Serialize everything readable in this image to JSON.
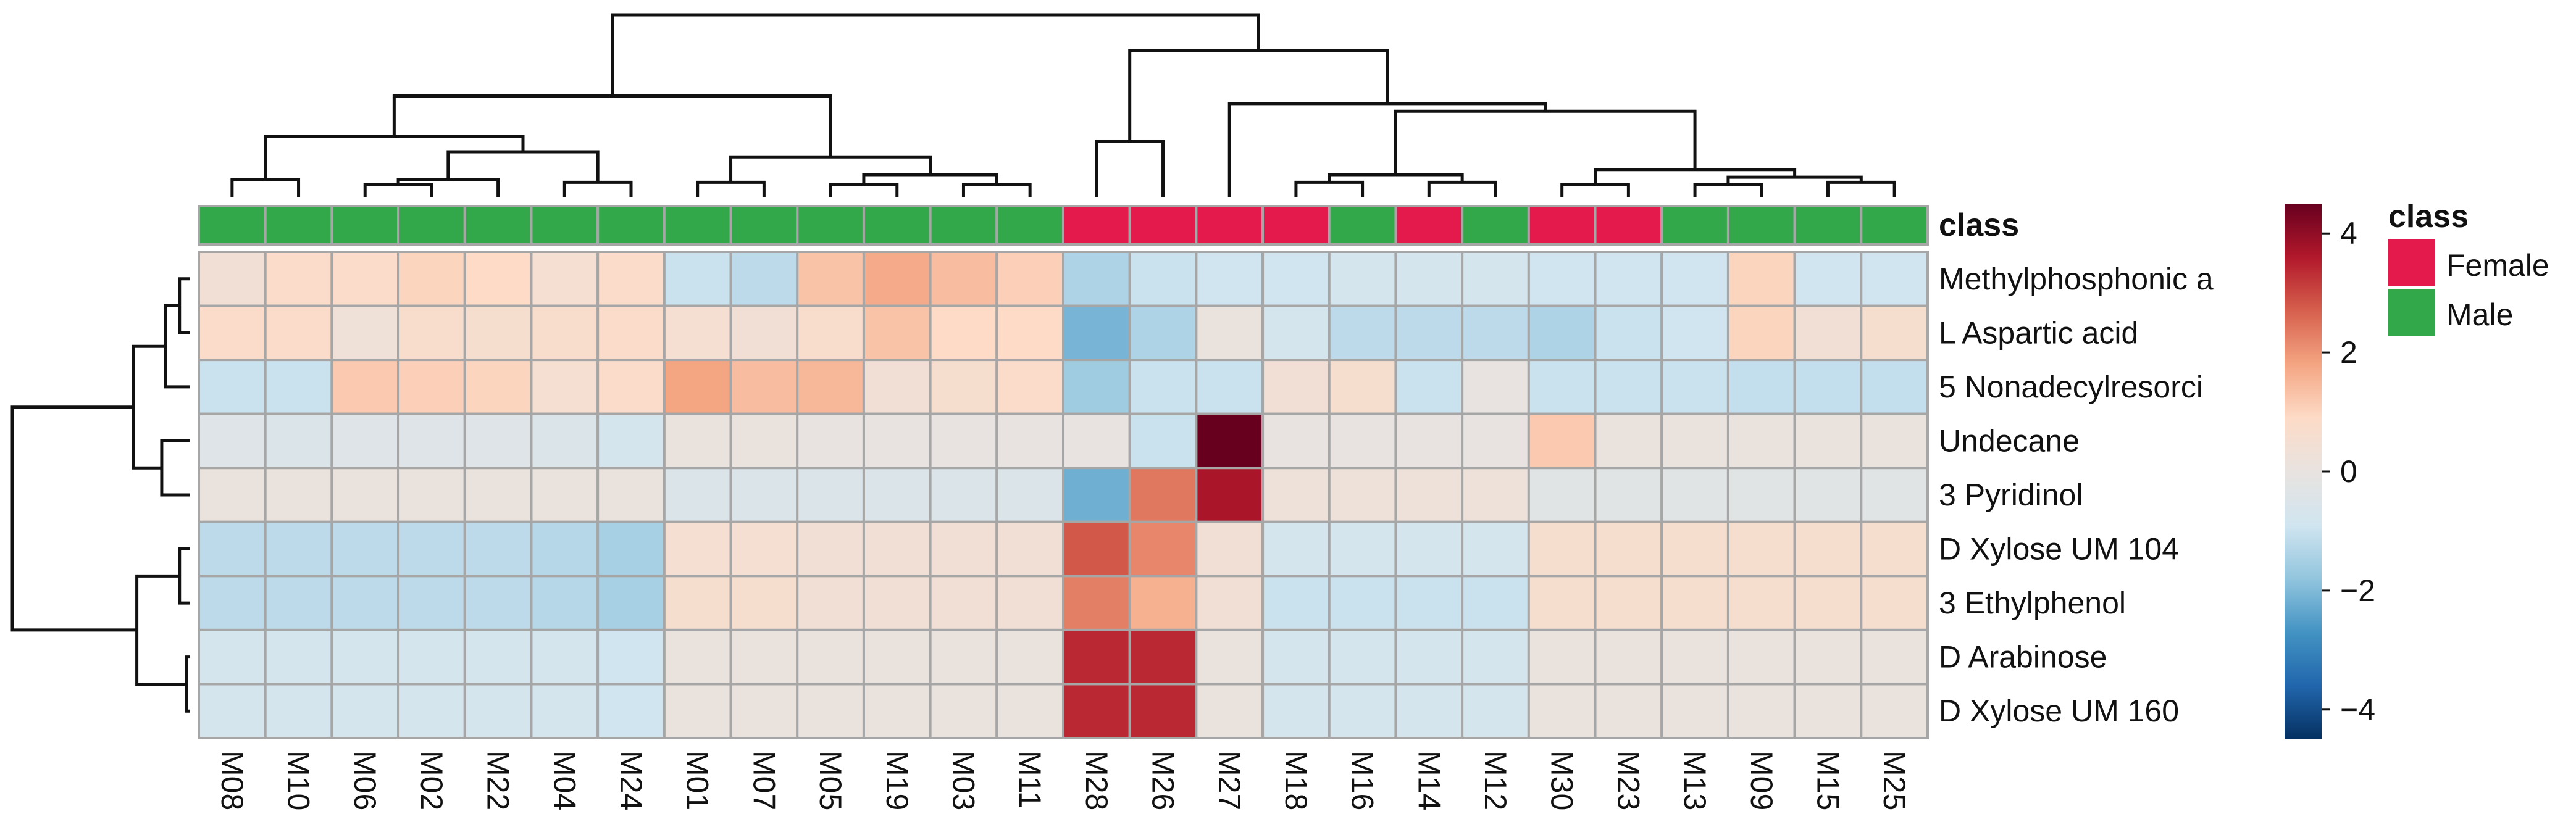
{
  "chart_data": {
    "type": "heatmap",
    "title": "",
    "columns": [
      "M08",
      "M10",
      "M06",
      "M02",
      "M22",
      "M04",
      "M24",
      "M01",
      "M07",
      "M05",
      "M19",
      "M03",
      "M11",
      "M28",
      "M26",
      "M27",
      "M18",
      "M16",
      "M14",
      "M12",
      "M30",
      "M23",
      "M13",
      "M09",
      "M15",
      "M25"
    ],
    "column_class": [
      "Male",
      "Male",
      "Male",
      "Male",
      "Male",
      "Male",
      "Male",
      "Male",
      "Male",
      "Male",
      "Male",
      "Male",
      "Male",
      "Female",
      "Female",
      "Female",
      "Female",
      "Male",
      "Female",
      "Male",
      "Female",
      "Female",
      "Male",
      "Male",
      "Male",
      "Male"
    ],
    "rows": [
      "Methylphosphonic a",
      "L Aspartic acid",
      "5 Nonadecylresorci",
      "Undecane",
      "3 Pyridinol",
      "D Xylose UM 104",
      "3 Ethylphenol",
      "D Arabinose",
      "D Xylose  UM 160"
    ],
    "values": [
      [
        0.4,
        0.8,
        0.8,
        1.0,
        0.9,
        0.5,
        0.8,
        -1.0,
        -1.2,
        1.3,
        1.7,
        1.4,
        1.1,
        -1.4,
        -1.0,
        -0.9,
        -0.9,
        -0.8,
        -0.8,
        -0.8,
        -0.9,
        -0.9,
        -0.9,
        1.0,
        -0.9,
        -0.9
      ],
      [
        0.8,
        0.8,
        0.3,
        0.7,
        0.6,
        0.7,
        0.8,
        0.5,
        0.4,
        0.7,
        1.3,
        0.9,
        0.9,
        -2.1,
        -1.4,
        0.1,
        -0.8,
        -1.2,
        -1.2,
        -1.2,
        -1.4,
        -1.0,
        -0.9,
        1.0,
        0.4,
        0.6
      ],
      [
        -1.0,
        -1.0,
        1.2,
        1.1,
        1.0,
        0.5,
        0.8,
        1.8,
        1.4,
        1.5,
        0.4,
        0.6,
        0.8,
        -1.6,
        -1.0,
        -1.0,
        0.4,
        0.6,
        -1.0,
        0.0,
        -1.0,
        -1.0,
        -1.0,
        -1.1,
        -1.1,
        -1.1
      ],
      [
        -0.4,
        -0.5,
        -0.4,
        -0.4,
        -0.4,
        -0.5,
        -0.8,
        0.1,
        0.1,
        0.0,
        0.0,
        0.0,
        0.0,
        0.0,
        -1.0,
        4.5,
        0.0,
        0.0,
        0.0,
        0.0,
        1.2,
        0.1,
        0.1,
        0.1,
        0.1,
        0.1
      ],
      [
        0.1,
        0.1,
        0.1,
        0.1,
        0.1,
        0.1,
        0.1,
        -0.5,
        -0.5,
        -0.5,
        -0.5,
        -0.5,
        -0.5,
        -2.2,
        2.4,
        3.7,
        0.2,
        0.2,
        0.2,
        0.2,
        -0.3,
        -0.3,
        -0.3,
        -0.3,
        -0.3,
        -0.3
      ],
      [
        -1.2,
        -1.2,
        -1.2,
        -1.2,
        -1.2,
        -1.3,
        -1.5,
        0.5,
        0.5,
        0.4,
        0.4,
        0.4,
        0.4,
        2.8,
        2.2,
        0.4,
        -0.8,
        -0.8,
        -0.8,
        -0.8,
        0.6,
        0.6,
        0.6,
        0.6,
        0.6,
        0.6
      ],
      [
        -1.2,
        -1.2,
        -1.2,
        -1.2,
        -1.2,
        -1.3,
        -1.5,
        0.6,
        0.6,
        0.4,
        0.4,
        0.4,
        0.4,
        2.3,
        1.6,
        0.4,
        -1.0,
        -1.0,
        -1.0,
        -1.0,
        0.6,
        0.6,
        0.6,
        0.6,
        0.6,
        0.6
      ],
      [
        -0.8,
        -0.8,
        -0.8,
        -0.8,
        -0.8,
        -0.8,
        -0.9,
        0.1,
        0.1,
        0.1,
        0.1,
        0.1,
        0.1,
        3.4,
        3.4,
        0.1,
        -0.8,
        -0.8,
        -0.8,
        -0.8,
        0.1,
        0.1,
        0.1,
        0.1,
        0.1,
        0.1
      ],
      [
        -0.8,
        -0.8,
        -0.8,
        -0.8,
        -0.8,
        -0.8,
        -0.9,
        0.1,
        0.1,
        0.1,
        0.1,
        0.1,
        0.1,
        3.4,
        3.4,
        0.1,
        -0.8,
        -0.8,
        -0.8,
        -0.8,
        0.1,
        0.1,
        0.1,
        0.1,
        0.1,
        0.1
      ]
    ],
    "annotation_title": "class",
    "colorbar": {
      "range": [
        -4.5,
        4.5
      ],
      "ticks": [
        -4,
        -2,
        0,
        2,
        4
      ],
      "tick_labels": [
        "−4",
        "−2",
        "0",
        "2",
        "4"
      ]
    },
    "legend": {
      "title": "class",
      "position": "right",
      "entries": [
        {
          "label": "Female",
          "color": "#e31a4b"
        },
        {
          "label": "Male",
          "color": "#33a84a"
        }
      ]
    },
    "colors": {
      "female": "#e31a4b",
      "male": "#33a84a",
      "cell_border": "#a6a6a6",
      "dendrogram": "#111111",
      "scale": [
        "#053061",
        "#2166ac",
        "#4393c3",
        "#92c5de",
        "#d1e5f0",
        "#e8e3e0",
        "#fddbc7",
        "#f4a582",
        "#d6604d",
        "#b2182b",
        "#67001f"
      ]
    },
    "col_dendrogram": [
      [
        0,
        1,
        0.7
      ],
      [
        2,
        3,
        0.5
      ],
      [
        27,
        4,
        0.7
      ],
      [
        5,
        6,
        0.6
      ],
      [
        28,
        29,
        1.8
      ],
      [
        26,
        30,
        2.4
      ],
      [
        7,
        8,
        0.6
      ],
      [
        9,
        10,
        0.5
      ],
      [
        11,
        12,
        0.5
      ],
      [
        33,
        34,
        0.9
      ],
      [
        32,
        35,
        1.6
      ],
      [
        31,
        36,
        4.0
      ],
      [
        13,
        14,
        2.2
      ],
      [
        16,
        17,
        0.6
      ],
      [
        18,
        19,
        0.6
      ],
      [
        39,
        40,
        0.9
      ],
      [
        20,
        21,
        0.5
      ],
      [
        22,
        23,
        0.5
      ],
      [
        24,
        25,
        0.6
      ],
      [
        43,
        44,
        0.8
      ],
      [
        42,
        45,
        1.1
      ],
      [
        41,
        46,
        3.4
      ],
      [
        15,
        47,
        3.7
      ],
      [
        38,
        48,
        5.8
      ],
      [
        37,
        49,
        7.2
      ]
    ],
    "row_dendrogram": [
      [
        0,
        1,
        0.3
      ],
      [
        2,
        9,
        0.7
      ],
      [
        3,
        4,
        0.8
      ],
      [
        10,
        11,
        1.6
      ],
      [
        5,
        6,
        0.3
      ],
      [
        7,
        8,
        0.1
      ],
      [
        13,
        14,
        1.5
      ],
      [
        12,
        15,
        5.0
      ]
    ]
  }
}
